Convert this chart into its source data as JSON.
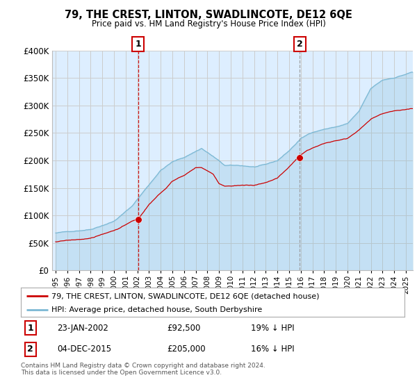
{
  "title": "79, THE CREST, LINTON, SWADLINCOTE, DE12 6QE",
  "subtitle": "Price paid vs. HM Land Registry's House Price Index (HPI)",
  "sale1_date": "23-JAN-2002",
  "sale1_price": 92500,
  "sale2_date": "04-DEC-2015",
  "sale2_price": 205000,
  "sale1_hpi_diff": "19% ↓ HPI",
  "sale2_hpi_diff": "16% ↓ HPI",
  "legend_line1": "79, THE CREST, LINTON, SWADLINCOTE, DE12 6QE (detached house)",
  "legend_line2": "HPI: Average price, detached house, South Derbyshire",
  "footer": "Contains HM Land Registry data © Crown copyright and database right 2024.\nThis data is licensed under the Open Government Licence v3.0.",
  "hpi_color": "#7bb8d4",
  "hpi_fill": "#d6eaf8",
  "price_color": "#cc0000",
  "vline1_color": "#cc0000",
  "vline2_color": "#999999",
  "box_color": "#cc0000",
  "ylim": [
    0,
    400000
  ],
  "yticks": [
    0,
    50000,
    100000,
    150000,
    200000,
    250000,
    300000,
    350000,
    400000
  ],
  "background_color": "#ffffff",
  "chart_bg": "#ddeeff",
  "grid_color": "#cccccc",
  "sale1_year_dec": 2002.06,
  "sale2_year_dec": 2015.92
}
